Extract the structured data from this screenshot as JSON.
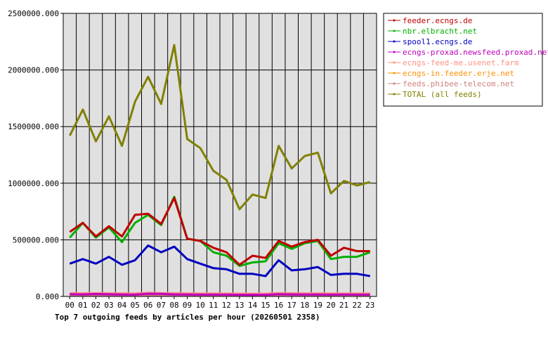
{
  "chart_data": {
    "type": "line",
    "title": "Top 7 outgoing feeds by articles per hour (20260501 2358)",
    "xlabel": "",
    "ylabel": "",
    "ylim": [
      0,
      2500000
    ],
    "yticks": [
      "0.000",
      "500000.000",
      "1000000.000",
      "1500000.000",
      "2000000.000",
      "2500000.000"
    ],
    "ytick_values": [
      0,
      500000,
      1000000,
      1500000,
      2000000,
      2500000
    ],
    "grid": true,
    "legend_position": "right",
    "x": [
      "00",
      "01",
      "02",
      "03",
      "04",
      "05",
      "06",
      "07",
      "08",
      "09",
      "10",
      "11",
      "12",
      "13",
      "14",
      "15",
      "16",
      "17",
      "18",
      "19",
      "20",
      "21",
      "22",
      "23"
    ],
    "series": [
      {
        "name": "feeder.ecngs.de",
        "color": "#c00000",
        "values": [
          570000,
          650000,
          530000,
          620000,
          530000,
          720000,
          730000,
          640000,
          870000,
          510000,
          490000,
          430000,
          390000,
          280000,
          360000,
          340000,
          490000,
          440000,
          480000,
          500000,
          360000,
          430000,
          400000,
          400000
        ]
      },
      {
        "name": "nbr.elbracht.net",
        "color": "#00b000",
        "values": [
          520000,
          650000,
          520000,
          610000,
          480000,
          650000,
          720000,
          630000,
          880000,
          510000,
          490000,
          390000,
          360000,
          270000,
          300000,
          310000,
          470000,
          420000,
          470000,
          490000,
          330000,
          350000,
          350000,
          390000
        ]
      },
      {
        "name": "spool1.ecngs.de",
        "color": "#0000c0",
        "values": [
          290000,
          330000,
          290000,
          350000,
          280000,
          320000,
          450000,
          390000,
          440000,
          330000,
          290000,
          250000,
          240000,
          200000,
          200000,
          180000,
          320000,
          230000,
          240000,
          260000,
          190000,
          200000,
          200000,
          180000
        ]
      },
      {
        "name": "ecngs-proxad.newsfeed.proxad.net",
        "color": "#c000c0",
        "values": [
          20000,
          18000,
          22000,
          19000,
          17000,
          16000,
          24000,
          23000,
          18000,
          17000,
          16000,
          16000,
          16000,
          15000,
          15000,
          15000,
          20000,
          18000,
          17000,
          17000,
          16000,
          17000,
          16000,
          16000
        ]
      },
      {
        "name": "ecngs-feed-me.usenet.farm",
        "color": "#ff9080",
        "values": [
          30000,
          28000,
          30000,
          28000,
          27000,
          26000,
          32000,
          30000,
          28000,
          27000,
          26000,
          26000,
          26000,
          25000,
          25000,
          25000,
          30000,
          28000,
          27000,
          27000,
          26000,
          26000,
          26000,
          26000
        ]
      },
      {
        "name": "ecngs-in.feeder.erje.net",
        "color": "#ff9000",
        "values": [
          15000,
          14000,
          15000,
          14000,
          13000,
          13000,
          16000,
          15000,
          14000,
          13000,
          13000,
          13000,
          13000,
          12000,
          12000,
          12000,
          15000,
          14000,
          13000,
          13000,
          13000,
          13000,
          13000,
          13000
        ]
      },
      {
        "name": "feeds.phibee-telecom.net",
        "color": "#d08080",
        "values": [
          10000,
          10000,
          10000,
          10000,
          9000,
          9000,
          11000,
          10000,
          10000,
          9000,
          9000,
          9000,
          9000,
          9000,
          9000,
          9000,
          10000,
          10000,
          9000,
          9000,
          9000,
          9000,
          9000,
          9000
        ]
      },
      {
        "name": "TOTAL (all feeds)",
        "color": "#808000",
        "values": [
          1420000,
          1650000,
          1370000,
          1590000,
          1330000,
          1720000,
          1940000,
          1700000,
          2220000,
          1390000,
          1310000,
          1110000,
          1030000,
          770000,
          900000,
          870000,
          1330000,
          1130000,
          1240000,
          1270000,
          910000,
          1020000,
          980000,
          1010000
        ]
      }
    ]
  }
}
